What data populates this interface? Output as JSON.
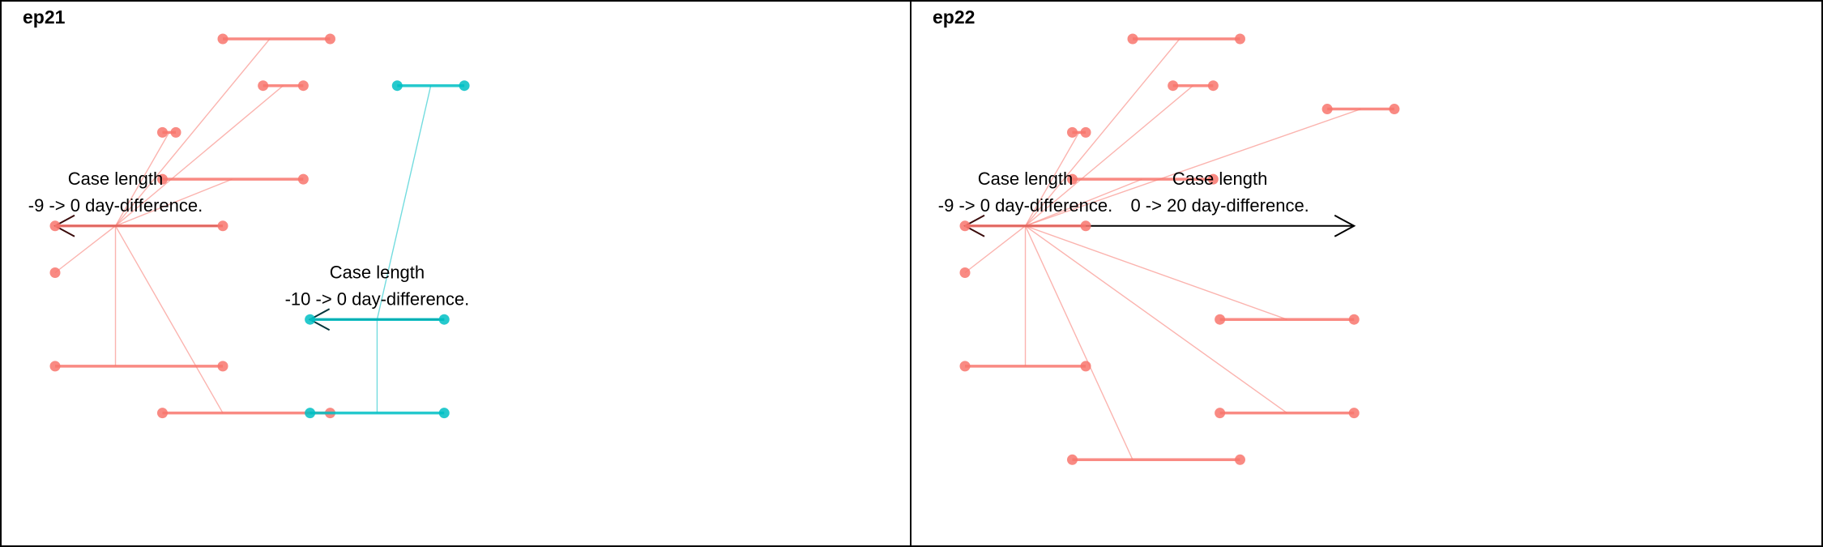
{
  "colors": {
    "salmon": "#F8766D",
    "cyan": "#00BFC4",
    "arrow_dark_left": "#3a0b0b",
    "arrow_dark_right_cyan": "#06353a",
    "arrow_black": "#000000"
  },
  "panels": [
    {
      "title": "ep21",
      "episodes": [
        {
          "color_key": "salmon",
          "segments": [
            {
              "from": 125,
              "to": 205,
              "y": 1
            },
            {
              "from": 155,
              "to": 185,
              "y": 2
            },
            {
              "from": 80,
              "to": 90,
              "y": 3
            },
            {
              "from": 80,
              "to": 185,
              "y": 4
            },
            {
              "from": 0,
              "to": 125,
              "y": 5
            },
            {
              "from": 0,
              "to": 0,
              "y": 6
            },
            {
              "from": 0,
              "to": 125,
              "y": 8
            },
            {
              "from": 80,
              "to": 205,
              "y": 9
            }
          ],
          "links": [
            {
              "x1": 160,
              "y1": 1,
              "x2": 45,
              "y2": 5
            },
            {
              "x1": 170,
              "y1": 2,
              "x2": 45,
              "y2": 5
            },
            {
              "x1": 85,
              "y1": 3,
              "x2": 45,
              "y2": 5
            },
            {
              "x1": 132,
              "y1": 4,
              "x2": 45,
              "y2": 5
            },
            {
              "x1": 0,
              "y1": 6,
              "x2": 45,
              "y2": 5
            },
            {
              "x1": 45,
              "y1": 8,
              "x2": 45,
              "y2": 5
            },
            {
              "x1": 125,
              "y1": 9,
              "x2": 45,
              "y2": 5
            }
          ],
          "arrow": {
            "from": 125,
            "to": 0,
            "y": 5,
            "color_key": "arrow_dark_left"
          },
          "annotation": {
            "line1": "Case length",
            "line2": "-9 -> 0 day-difference.",
            "x": 45,
            "y": 4
          }
        },
        {
          "color_key": "cyan",
          "segments": [
            {
              "from": 255,
              "to": 305,
              "y": 2
            },
            {
              "from": 190,
              "to": 290,
              "y": 7
            },
            {
              "from": 190,
              "to": 290,
              "y": 9
            }
          ],
          "links": [
            {
              "x1": 280,
              "y1": 2,
              "x2": 240,
              "y2": 7
            },
            {
              "x1": 240,
              "y1": 9,
              "x2": 240,
              "y2": 7
            }
          ],
          "arrow": {
            "from": 290,
            "to": 190,
            "y": 7,
            "color_key": "arrow_dark_right_cyan"
          },
          "annotation": {
            "line1": "Case length",
            "line2": "-10 -> 0 day-difference.",
            "x": 240,
            "y": 6
          }
        }
      ]
    },
    {
      "title": "ep22",
      "episodes": [
        {
          "color_key": "salmon",
          "segments": [
            {
              "from": 125,
              "to": 205,
              "y": 1
            },
            {
              "from": 155,
              "to": 185,
              "y": 2
            },
            {
              "from": 80,
              "to": 90,
              "y": 3
            },
            {
              "from": 80,
              "to": 185,
              "y": 4
            },
            {
              "from": 0,
              "to": 90,
              "y": 5
            },
            {
              "from": 0,
              "to": 0,
              "y": 6
            },
            {
              "from": 0,
              "to": 90,
              "y": 8
            },
            {
              "from": 80,
              "to": 205,
              "y": 10
            },
            {
              "from": 270,
              "to": 320,
              "y": 2.5
            },
            {
              "from": 190,
              "to": 290,
              "y": 7
            },
            {
              "from": 190,
              "to": 290,
              "y": 9
            }
          ],
          "links": [
            {
              "x1": 160,
              "y1": 1,
              "x2": 45,
              "y2": 5
            },
            {
              "x1": 170,
              "y1": 2,
              "x2": 45,
              "y2": 5
            },
            {
              "x1": 85,
              "y1": 3,
              "x2": 45,
              "y2": 5
            },
            {
              "x1": 132,
              "y1": 4,
              "x2": 45,
              "y2": 5
            },
            {
              "x1": 0,
              "y1": 6,
              "x2": 45,
              "y2": 5
            },
            {
              "x1": 45,
              "y1": 8,
              "x2": 45,
              "y2": 5
            },
            {
              "x1": 125,
              "y1": 10,
              "x2": 45,
              "y2": 5
            },
            {
              "x1": 295,
              "y1": 2.5,
              "x2": 45,
              "y2": 5
            },
            {
              "x1": 240,
              "y1": 7,
              "x2": 45,
              "y2": 5
            },
            {
              "x1": 240,
              "y1": 9,
              "x2": 45,
              "y2": 5
            }
          ],
          "arrow": {
            "from": 90,
            "to": 0,
            "y": 5,
            "color_key": "arrow_dark_left"
          },
          "annotation": {
            "line1": "Case length",
            "line2": "-9 -> 0 day-difference.",
            "x": 45,
            "y": 4
          }
        },
        {
          "color_key": "salmon",
          "segments": [],
          "links": [],
          "arrow": {
            "from": 90,
            "to": 290,
            "y": 5,
            "color_key": "arrow_black"
          },
          "annotation": {
            "line1": "Case length",
            "line2": "0 -> 20 day-difference.",
            "x": 190,
            "y": 4
          }
        }
      ]
    }
  ]
}
